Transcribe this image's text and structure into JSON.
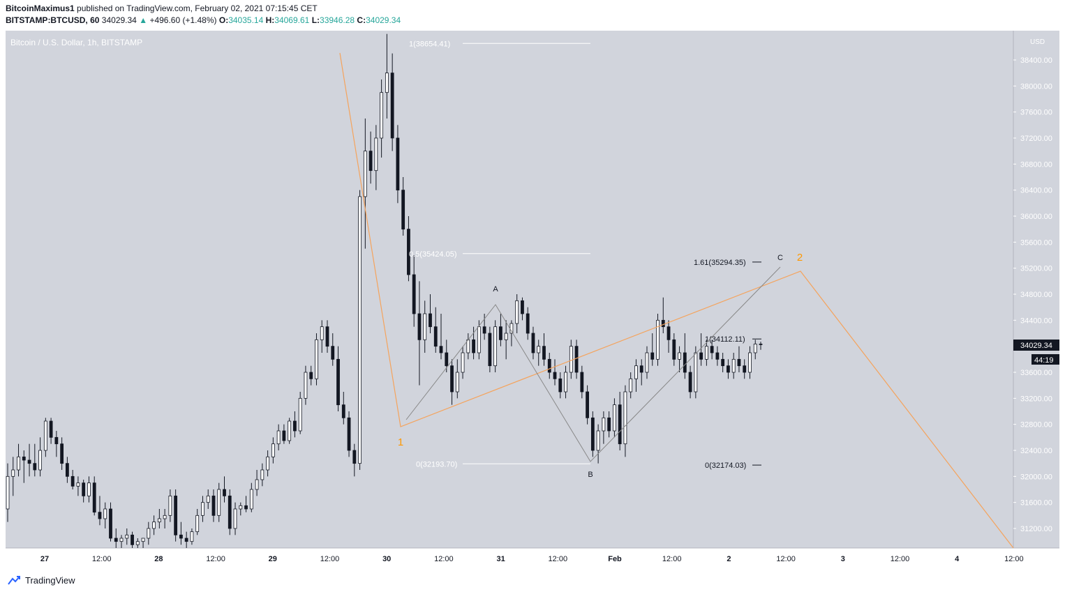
{
  "header": {
    "author": "BitcoinMaximus1",
    "published_text": "published on TradingView.com, February 02, 2021 07:15:45 CET",
    "symbol": "BITSTAMP:BTCUSD, 60",
    "last": "34029.34",
    "change_arrow": "▲",
    "change": "+496.60 (+1.48%)",
    "o_label": "O:",
    "o_value": "34035.14",
    "h_label": "H:",
    "h_value": "34069.61",
    "l_label": "L:",
    "l_value": "33946.28",
    "c_label": "C:",
    "c_value": "34029.34"
  },
  "chart_title": "Bitcoin / U.S. Dollar, 1h, BITSTAMP",
  "currency_label": "USD",
  "last_price_label": "34029.34",
  "countdown_label": "44:19",
  "footer_brand": "TradingView",
  "colors": {
    "background": "#d1d4dc",
    "candle_up": "#ffffff",
    "candle_down": "#131722",
    "orange_wave": "#f5a35c",
    "fib_line": "#ffffff",
    "gray_path": "#888888",
    "label_orange": "#ff9800"
  },
  "chart_data": {
    "type": "candlestick",
    "title": "Bitcoin / U.S. Dollar, 1h, BITSTAMP",
    "ylim": [
      30900,
      38850
    ],
    "y_ticks": [
      31200,
      31600,
      32000,
      32400,
      32800,
      33200,
      33600,
      34000,
      34400,
      34800,
      35200,
      35600,
      36000,
      36400,
      36800,
      37200,
      37600,
      38000,
      38400
    ],
    "y_tick_labels": [
      "31200.00",
      "31600.00",
      "32000.00",
      "32400.00",
      "32800.00",
      "33200.00",
      "33600.00",
      "34000.00",
      "34400.00",
      "34800.00",
      "35200.00",
      "35600.00",
      "36000.00",
      "36400.00",
      "36800.00",
      "37200.00",
      "37600.00",
      "38000.00",
      "38400.00"
    ],
    "x_tick_labels": [
      "27",
      "12:00",
      "28",
      "12:00",
      "29",
      "12:00",
      "30",
      "12:00",
      "31",
      "12:00",
      "Feb",
      "12:00",
      "2",
      "12:00",
      "3",
      "12:00",
      "4",
      "12:00"
    ],
    "candles_ohlc": [
      [
        31500,
        32200,
        31300,
        32000
      ],
      [
        32000,
        32300,
        31700,
        32100
      ],
      [
        32100,
        32500,
        32000,
        32300
      ],
      [
        32300,
        32400,
        31900,
        32250
      ],
      [
        32250,
        32500,
        32000,
        32200
      ],
      [
        32200,
        32500,
        32000,
        32100
      ],
      [
        32100,
        32600,
        32000,
        32400
      ],
      [
        32400,
        32900,
        32300,
        32850
      ],
      [
        32850,
        32900,
        32500,
        32600
      ],
      [
        32600,
        32700,
        32300,
        32500
      ],
      [
        32500,
        32600,
        32100,
        32200
      ],
      [
        32200,
        32300,
        31900,
        32000
      ],
      [
        32000,
        32100,
        31800,
        31850
      ],
      [
        31850,
        32000,
        31700,
        31900
      ],
      [
        31900,
        31950,
        31600,
        31700
      ],
      [
        31700,
        32000,
        31600,
        31900
      ],
      [
        31900,
        32000,
        31400,
        31450
      ],
      [
        31450,
        31700,
        31250,
        31350
      ],
      [
        31350,
        31600,
        31200,
        31500
      ],
      [
        31500,
        31600,
        31000,
        31050
      ],
      [
        31050,
        31200,
        30900,
        31000
      ],
      [
        31000,
        31100,
        30900,
        31050
      ],
      [
        31050,
        31200,
        30950,
        31100
      ],
      [
        31100,
        31150,
        30900,
        30950
      ],
      [
        30950,
        31050,
        30900,
        31000
      ],
      [
        31000,
        31050,
        30900,
        31050
      ],
      [
        31050,
        31300,
        30950,
        31200
      ],
      [
        31200,
        31400,
        31100,
        31300
      ],
      [
        31300,
        31500,
        31200,
        31350
      ],
      [
        31350,
        31500,
        31200,
        31400
      ],
      [
        31400,
        31800,
        31300,
        31700
      ],
      [
        31700,
        31800,
        31000,
        31100
      ],
      [
        31100,
        31300,
        30950,
        31050
      ],
      [
        31050,
        31150,
        30900,
        31000
      ],
      [
        31000,
        31200,
        30950,
        31150
      ],
      [
        31150,
        31500,
        31100,
        31400
      ],
      [
        31400,
        31700,
        31300,
        31600
      ],
      [
        31600,
        31800,
        31500,
        31700
      ],
      [
        31700,
        31800,
        31300,
        31400
      ],
      [
        31400,
        31900,
        31300,
        31800
      ],
      [
        31800,
        32000,
        31600,
        31700
      ],
      [
        31700,
        31800,
        31100,
        31200
      ],
      [
        31200,
        31600,
        31100,
        31500
      ],
      [
        31500,
        31600,
        31400,
        31550
      ],
      [
        31550,
        31700,
        31450,
        31500
      ],
      [
        31500,
        31900,
        31450,
        31800
      ],
      [
        31800,
        32100,
        31700,
        31950
      ],
      [
        31950,
        32200,
        31850,
        32100
      ],
      [
        32100,
        32400,
        32000,
        32300
      ],
      [
        32300,
        32600,
        32200,
        32500
      ],
      [
        32500,
        32800,
        32400,
        32700
      ],
      [
        32700,
        32800,
        32500,
        32550
      ],
      [
        32550,
        32900,
        32500,
        32850
      ],
      [
        32850,
        33000,
        32600,
        32700
      ],
      [
        32700,
        33300,
        32650,
        33200
      ],
      [
        33200,
        33700,
        33100,
        33600
      ],
      [
        33600,
        33700,
        33400,
        33500
      ],
      [
        33500,
        34200,
        33400,
        34100
      ],
      [
        34100,
        34400,
        33900,
        34300
      ],
      [
        34300,
        34400,
        33900,
        34000
      ],
      [
        34000,
        34200,
        33700,
        33800
      ],
      [
        33800,
        34000,
        33000,
        33100
      ],
      [
        33100,
        33300,
        32800,
        32900
      ],
      [
        32900,
        33000,
        32300,
        32400
      ],
      [
        32400,
        32500,
        32000,
        32200
      ],
      [
        32200,
        36400,
        32100,
        36300
      ],
      [
        36300,
        37500,
        35500,
        37000
      ],
      [
        37000,
        37300,
        36500,
        36700
      ],
      [
        36700,
        37400,
        36400,
        37200
      ],
      [
        37200,
        38100,
        36900,
        37900
      ],
      [
        37900,
        38800,
        37500,
        38200
      ],
      [
        38200,
        38500,
        37000,
        37200
      ],
      [
        37200,
        37400,
        36200,
        36400
      ],
      [
        36400,
        36600,
        35700,
        35800
      ],
      [
        35800,
        36000,
        35000,
        35100
      ],
      [
        35100,
        35400,
        34300,
        34500
      ],
      [
        34500,
        35000,
        33400,
        34100
      ],
      [
        34100,
        34700,
        33900,
        34500
      ],
      [
        34500,
        34800,
        34200,
        34300
      ],
      [
        34300,
        34600,
        33900,
        34000
      ],
      [
        34000,
        34500,
        33800,
        33900
      ],
      [
        33900,
        34100,
        33600,
        33700
      ],
      [
        33700,
        33800,
        33100,
        33300
      ],
      [
        33300,
        33800,
        33200,
        33600
      ],
      [
        33600,
        34000,
        33500,
        33900
      ],
      [
        33900,
        34200,
        33800,
        34100
      ],
      [
        34100,
        34300,
        33800,
        33900
      ],
      [
        33900,
        34400,
        33800,
        34300
      ],
      [
        34300,
        34500,
        34100,
        34200
      ],
      [
        34200,
        34300,
        33600,
        33700
      ],
      [
        33700,
        34400,
        33600,
        34300
      ],
      [
        34300,
        34500,
        34000,
        34100
      ],
      [
        34100,
        34400,
        33800,
        34200
      ],
      [
        34200,
        34400,
        34000,
        34350
      ],
      [
        34350,
        34800,
        34200,
        34700
      ],
      [
        34700,
        34750,
        34400,
        34500
      ],
      [
        34500,
        34600,
        34100,
        34200
      ],
      [
        34200,
        34300,
        33800,
        33900
      ],
      [
        33900,
        34100,
        33700,
        34000
      ],
      [
        34000,
        34200,
        33700,
        33800
      ],
      [
        33800,
        33900,
        33500,
        33600
      ],
      [
        33600,
        33800,
        33400,
        33500
      ],
      [
        33500,
        33600,
        33200,
        33300
      ],
      [
        33300,
        33700,
        33200,
        33600
      ],
      [
        33600,
        34100,
        33500,
        34000
      ],
      [
        34000,
        34100,
        33500,
        33600
      ],
      [
        33600,
        33700,
        33200,
        33300
      ],
      [
        33300,
        33400,
        32800,
        32900
      ],
      [
        32900,
        33000,
        32300,
        32400
      ],
      [
        32400,
        32800,
        32200,
        32700
      ],
      [
        32700,
        33000,
        32500,
        32900
      ],
      [
        32900,
        33000,
        32600,
        32700
      ],
      [
        32700,
        33200,
        32600,
        33100
      ],
      [
        33100,
        33300,
        32400,
        32500
      ],
      [
        32500,
        33400,
        32300,
        33300
      ],
      [
        33300,
        33600,
        33200,
        33500
      ],
      [
        33500,
        33800,
        33300,
        33700
      ],
      [
        33700,
        33800,
        33400,
        33600
      ],
      [
        33600,
        34000,
        33500,
        33900
      ],
      [
        33900,
        34200,
        33700,
        33800
      ],
      [
        33800,
        34500,
        33700,
        34400
      ],
      [
        34400,
        34750,
        34200,
        34300
      ],
      [
        34300,
        34400,
        33900,
        34100
      ],
      [
        34100,
        34200,
        33700,
        33800
      ],
      [
        33800,
        34000,
        33600,
        33900
      ],
      [
        33900,
        34200,
        33500,
        33600
      ],
      [
        33600,
        33700,
        33200,
        33300
      ],
      [
        33300,
        34000,
        33200,
        33900
      ],
      [
        33900,
        34200,
        33700,
        33800
      ],
      [
        33800,
        34100,
        33700,
        34000
      ],
      [
        34000,
        34100,
        33800,
        33900
      ],
      [
        33900,
        34000,
        33700,
        33800
      ],
      [
        33800,
        33900,
        33600,
        33700
      ],
      [
        33700,
        33800,
        33500,
        33600
      ],
      [
        33600,
        33900,
        33500,
        33800
      ],
      [
        33800,
        34000,
        33600,
        33700
      ],
      [
        33700,
        33800,
        33500,
        33600
      ],
      [
        33600,
        34000,
        33500,
        33900
      ],
      [
        33900,
        34100,
        33800,
        34035
      ],
      [
        34035,
        34070,
        33946,
        34029
      ]
    ],
    "annotations": [
      {
        "text": "1(38654.41)",
        "value": 38654.41
      },
      {
        "text": "0.5(35424.05)",
        "value": 35424.05
      },
      {
        "text": "0(32193.70)",
        "value": 32193.7
      },
      {
        "text": "1.61(35294.35)",
        "value": 35294.35
      },
      {
        "text": "1(34112.11)",
        "value": 34112.11
      },
      {
        "text": "0(32174.03)",
        "value": 32174.03
      }
    ],
    "wave_labels": [
      "1",
      "2",
      "A",
      "B",
      "C"
    ]
  }
}
